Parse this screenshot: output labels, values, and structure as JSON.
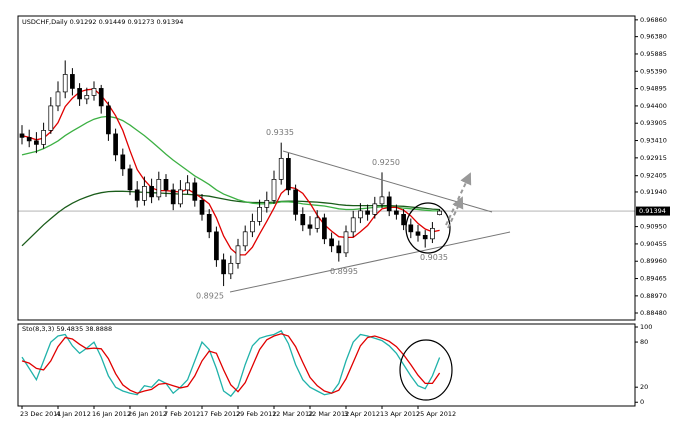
{
  "chart_data": [
    {
      "type": "candlestick",
      "title": "USDCHF,Daily 0.91292 0.91449 0.91273 0.91394",
      "open": [
        0.936,
        0.935,
        0.934,
        0.933,
        0.937,
        0.944,
        0.948,
        0.953,
        0.949,
        0.946,
        0.947,
        0.949,
        0.944,
        0.936,
        0.93,
        0.926,
        0.92,
        0.917,
        0.921,
        0.918,
        0.923,
        0.92,
        0.916,
        0.92,
        0.922,
        0.917,
        0.913,
        0.908,
        0.9,
        0.896,
        0.899,
        0.904,
        0.908,
        0.911,
        0.915,
        0.917,
        0.923,
        0.929,
        0.92,
        0.913,
        0.91,
        0.909,
        0.912,
        0.906,
        0.904,
        0.902,
        0.908,
        0.912,
        0.914,
        0.913,
        0.916,
        0.918,
        0.914,
        0.913,
        0.91,
        0.908,
        0.907,
        0.906,
        0.91292
      ],
      "high": [
        0.9385,
        0.9372,
        0.9365,
        0.9392,
        0.9465,
        0.951,
        0.957,
        0.9548,
        0.9505,
        0.9492,
        0.951,
        0.95,
        0.9452,
        0.9375,
        0.9318,
        0.9272,
        0.9225,
        0.9238,
        0.9232,
        0.9252,
        0.9245,
        0.9218,
        0.9228,
        0.9242,
        0.9235,
        0.9188,
        0.9145,
        0.9095,
        0.9018,
        0.9012,
        0.906,
        0.9098,
        0.9132,
        0.9172,
        0.9195,
        0.9255,
        0.9335,
        0.9305,
        0.9215,
        0.915,
        0.9125,
        0.9142,
        0.9132,
        0.9078,
        0.9055,
        0.9098,
        0.914,
        0.9162,
        0.9158,
        0.918,
        0.925,
        0.9195,
        0.9158,
        0.9145,
        0.9118,
        0.91,
        0.9085,
        0.9108,
        0.91449
      ],
      "low": [
        0.933,
        0.9322,
        0.9305,
        0.9318,
        0.936,
        0.9425,
        0.9462,
        0.947,
        0.944,
        0.9445,
        0.9455,
        0.9418,
        0.934,
        0.9282,
        0.924,
        0.9185,
        0.915,
        0.9155,
        0.9162,
        0.917,
        0.918,
        0.9142,
        0.915,
        0.9188,
        0.9152,
        0.9112,
        0.9062,
        0.898,
        0.8925,
        0.8945,
        0.8975,
        0.9025,
        0.9065,
        0.9098,
        0.9135,
        0.916,
        0.9215,
        0.9185,
        0.9112,
        0.9082,
        0.907,
        0.9078,
        0.9045,
        0.9022,
        0.8995,
        0.9008,
        0.9065,
        0.9105,
        0.9112,
        0.9118,
        0.9148,
        0.9125,
        0.9115,
        0.9085,
        0.9062,
        0.9052,
        0.9035,
        0.9048,
        0.91273
      ],
      "close": [
        0.935,
        0.934,
        0.933,
        0.937,
        0.944,
        0.948,
        0.953,
        0.949,
        0.946,
        0.947,
        0.949,
        0.944,
        0.936,
        0.93,
        0.926,
        0.92,
        0.917,
        0.921,
        0.918,
        0.923,
        0.92,
        0.916,
        0.92,
        0.922,
        0.917,
        0.913,
        0.908,
        0.9,
        0.896,
        0.899,
        0.904,
        0.908,
        0.911,
        0.915,
        0.917,
        0.923,
        0.929,
        0.92,
        0.913,
        0.91,
        0.909,
        0.912,
        0.906,
        0.904,
        0.902,
        0.908,
        0.912,
        0.914,
        0.913,
        0.916,
        0.918,
        0.914,
        0.913,
        0.91,
        0.908,
        0.907,
        0.906,
        0.909,
        0.91394
      ],
      "series": [
        {
          "color": "#1a5c1a",
          "values": [
            0.904,
            0.906,
            0.908,
            0.91,
            0.9118,
            0.9135,
            0.915,
            0.9162,
            0.9172,
            0.918,
            0.9187,
            0.9192,
            0.9195,
            0.9196,
            0.9196,
            0.9195,
            0.9194,
            0.9193,
            0.9192,
            0.9191,
            0.919,
            0.9189,
            0.9188,
            0.9187,
            0.9186,
            0.9184,
            0.9182,
            0.9178,
            0.9174,
            0.917,
            0.9167,
            0.9165,
            0.9164,
            0.9164,
            0.9164,
            0.9165,
            0.9167,
            0.9168,
            0.9168,
            0.9167,
            0.9166,
            0.9165,
            0.9163,
            0.9161,
            0.9158,
            0.9156,
            0.9155,
            0.9155,
            0.9155,
            0.9155,
            0.9155,
            0.9155,
            0.9154,
            0.9153,
            0.9151,
            0.9149,
            0.9147,
            0.9145,
            0.9144
          ]
        },
        {
          "color": "#3cb043",
          "values": [
            0.93,
            0.9305,
            0.931,
            0.9318,
            0.9328,
            0.934,
            0.9355,
            0.9368,
            0.938,
            0.9392,
            0.9402,
            0.9408,
            0.941,
            0.9406,
            0.9398,
            0.9385,
            0.937,
            0.9355,
            0.9338,
            0.932,
            0.9302,
            0.9285,
            0.927,
            0.9255,
            0.924,
            0.9228,
            0.9215,
            0.92,
            0.9188,
            0.918,
            0.9172,
            0.9166,
            0.9162,
            0.916,
            0.916,
            0.9162,
            0.9166,
            0.9166,
            0.9164,
            0.916,
            0.9158,
            0.9156,
            0.9154,
            0.915,
            0.9146,
            0.9144,
            0.9144,
            0.9146,
            0.9148,
            0.915,
            0.9152,
            0.9152,
            0.915,
            0.9148,
            0.9146,
            0.9144,
            0.9142,
            0.914,
            0.914
          ]
        },
        {
          "color": "#e00000",
          "values": [
            0.9355,
            0.935,
            0.9343,
            0.9348,
            0.9366,
            0.9392,
            0.9438,
            0.9462,
            0.948,
            0.9486,
            0.9488,
            0.947,
            0.9444,
            0.9412,
            0.937,
            0.9312,
            0.9258,
            0.9228,
            0.9206,
            0.9198,
            0.9198,
            0.9196,
            0.9194,
            0.9202,
            0.919,
            0.9176,
            0.916,
            0.912,
            0.9068,
            0.9032,
            0.9014,
            0.9014,
            0.9036,
            0.9074,
            0.911,
            0.9148,
            0.919,
            0.9208,
            0.9204,
            0.919,
            0.9162,
            0.9128,
            0.91,
            0.9082,
            0.9066,
            0.9064,
            0.9064,
            0.908,
            0.9098,
            0.9126,
            0.9146,
            0.915,
            0.915,
            0.9142,
            0.9126,
            0.9104,
            0.9088,
            0.908,
            0.9084
          ]
        }
      ],
      "current_price": {
        "value": 0.91394,
        "label": "0.91394"
      },
      "annotations": [
        {
          "value": 0.9335,
          "label": "0.9335"
        },
        {
          "value": 0.925,
          "label": "0.9250"
        },
        {
          "value": 0.8925,
          "label": "0.8925"
        },
        {
          "value": 0.8995,
          "label": "0.8995"
        },
        {
          "value": 0.9035,
          "label": "0.9035"
        }
      ],
      "ylim": [
        0.8828,
        0.9697
      ],
      "yticks": [
        {
          "value": 0.9686,
          "label": "0.96860"
        },
        {
          "value": 0.9638,
          "label": "0.96380"
        },
        {
          "value": 0.95885,
          "label": "0.95885"
        },
        {
          "value": 0.9539,
          "label": "0.95390"
        },
        {
          "value": 0.94895,
          "label": "0.94895"
        },
        {
          "value": 0.944,
          "label": "0.94400"
        },
        {
          "value": 0.93905,
          "label": "0.93905"
        },
        {
          "value": 0.9341,
          "label": "0.93410"
        },
        {
          "value": 0.92915,
          "label": "0.92915"
        },
        {
          "value": 0.92405,
          "label": "0.92405"
        },
        {
          "value": 0.9194,
          "label": "0.91940"
        },
        {
          "value": 0.9095,
          "label": "0.90950"
        },
        {
          "value": 0.90455,
          "label": "0.90455"
        },
        {
          "value": 0.8996,
          "label": "0.89960"
        },
        {
          "value": 0.89465,
          "label": "0.89465"
        },
        {
          "value": 0.8897,
          "label": "0.88970"
        },
        {
          "value": 0.8848,
          "label": "0.88480"
        }
      ]
    },
    {
      "type": "line",
      "title": "Sto(8,3,3) 59.4835 38.8888",
      "categories": [
        "23 Dec 2011",
        null,
        null,
        null,
        null,
        "4 Jan 2012",
        null,
        null,
        null,
        null,
        "16 Jan 2012",
        null,
        null,
        null,
        null,
        "26 Jan 2012",
        null,
        null,
        null,
        null,
        "7 Feb 2012",
        null,
        null,
        null,
        null,
        "17 Feb 2012",
        null,
        null,
        null,
        null,
        "29 Feb 2012",
        null,
        null,
        null,
        null,
        "12 Mar 2012",
        null,
        null,
        null,
        null,
        "22 Mar 2012",
        null,
        null,
        null,
        null,
        "3 Apr 2012",
        null,
        null,
        null,
        null,
        "13 Apr 2012",
        null,
        null,
        null,
        null,
        "25 Apr 2012",
        null,
        null,
        null
      ],
      "series": [
        {
          "color": "#20b2aa",
          "values": [
            60,
            45,
            30,
            55,
            80,
            88,
            90,
            75,
            65,
            72,
            80,
            60,
            35,
            20,
            15,
            12,
            10,
            22,
            20,
            30,
            25,
            12,
            20,
            30,
            55,
            80,
            70,
            45,
            15,
            8,
            20,
            50,
            75,
            85,
            88,
            90,
            95,
            78,
            50,
            30,
            20,
            15,
            10,
            12,
            25,
            55,
            80,
            90,
            88,
            85,
            82,
            75,
            65,
            50,
            35,
            22,
            18,
            35,
            59.4835
          ]
        },
        {
          "color": "#e00000",
          "values": [
            55,
            52,
            45,
            43,
            55,
            74,
            86,
            84,
            77,
            71,
            72,
            71,
            58,
            38,
            23,
            16,
            12,
            15,
            17,
            24,
            25,
            22,
            19,
            21,
            35,
            55,
            68,
            65,
            43,
            23,
            14,
            26,
            48,
            70,
            83,
            88,
            91,
            88,
            74,
            53,
            33,
            22,
            15,
            12,
            16,
            31,
            53,
            75,
            86,
            88,
            85,
            81,
            74,
            63,
            50,
            36,
            25,
            25,
            38.8888
          ]
        }
      ],
      "ylim": [
        -5,
        104
      ],
      "yticks": [
        100,
        80,
        20,
        0
      ]
    }
  ]
}
